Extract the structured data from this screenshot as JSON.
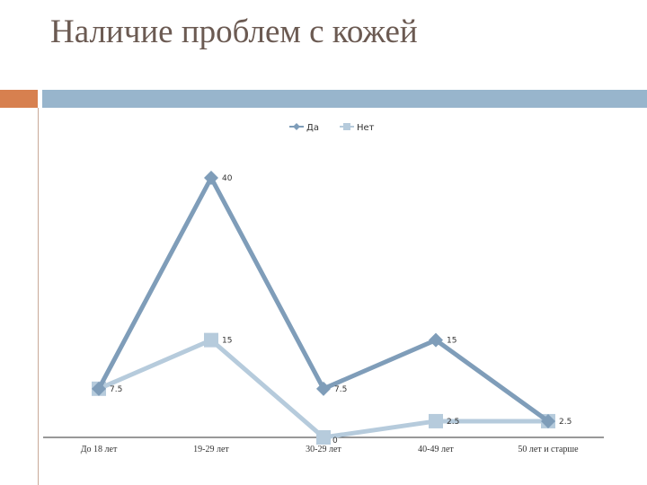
{
  "slide": {
    "title": "Наличие проблем с кожей"
  },
  "chart_data": {
    "type": "line",
    "categories": [
      "До 18 лет",
      "19-29 лет",
      "30-29 лет",
      "40-49 лет",
      "50 лет и старше"
    ],
    "series": [
      {
        "name": "Да",
        "values": [
          7.5,
          40,
          7.5,
          15,
          2.5
        ],
        "labels": [
          "",
          "40",
          "7.5",
          "15",
          "2.5"
        ],
        "color": "#7f9db9",
        "marker": "diamond"
      },
      {
        "name": "Нет",
        "values": [
          7.5,
          15,
          0,
          2.5,
          2.5
        ],
        "labels": [
          "7.5",
          "15",
          "0",
          "2.5",
          ""
        ],
        "color": "#b6cbdc",
        "marker": "square"
      }
    ],
    "ylim": [
      0,
      40
    ],
    "grid": false,
    "legend": "top-center"
  }
}
